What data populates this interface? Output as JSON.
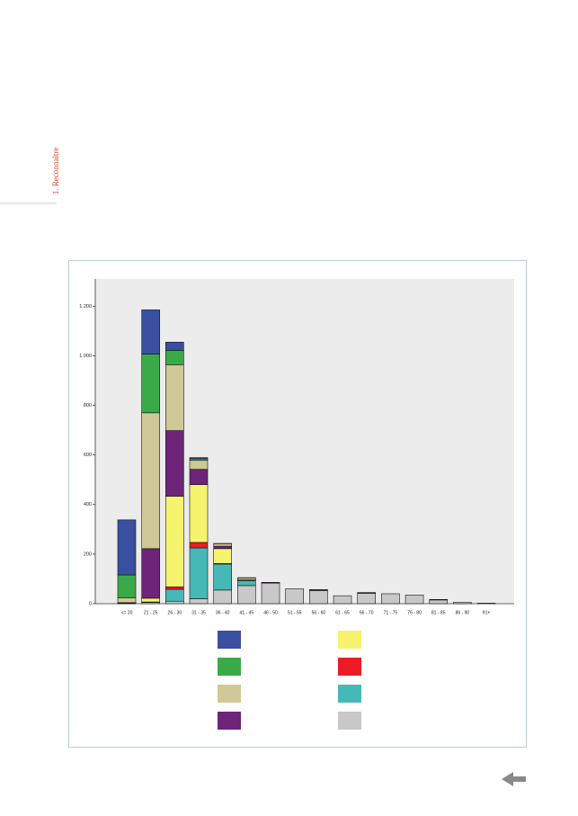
{
  "side_label": "1. Reconnaître",
  "chart_data": {
    "type": "stacked_bar",
    "categories": [
      "<= 20",
      "21 - 25",
      "26 - 30",
      "31 - 35",
      "36 - 40",
      "41 - 45",
      "46 - 50",
      "51 - 55",
      "56 - 60",
      "61 - 65",
      "66 - 70",
      "71 - 75",
      "76 - 80",
      "81 - 85",
      "86 - 90",
      "91+"
    ],
    "series": [
      {
        "color": "#c8c8c8",
        "values": [
          2,
          5,
          10,
          20,
          55,
          73,
          83,
          60,
          53,
          32,
          42,
          40,
          35,
          15,
          5,
          2
        ]
      },
      {
        "color": "#47b8b8",
        "values": [
          0,
          0,
          48,
          205,
          105,
          20,
          0,
          0,
          0,
          0,
          0,
          0,
          0,
          0,
          0,
          0
        ]
      },
      {
        "color": "#ed1c24",
        "values": [
          0,
          2,
          10,
          22,
          2,
          0,
          0,
          0,
          0,
          0,
          0,
          0,
          0,
          0,
          0,
          0
        ]
      },
      {
        "color": "#f6f36e",
        "values": [
          2,
          15,
          365,
          233,
          60,
          3,
          0,
          0,
          0,
          0,
          0,
          0,
          0,
          0,
          0,
          0
        ]
      },
      {
        "color": "#6e2479",
        "values": [
          0,
          200,
          265,
          62,
          10,
          0,
          3,
          0,
          4,
          0,
          3,
          0,
          0,
          2,
          0,
          0
        ]
      },
      {
        "color": "#cfc897",
        "values": [
          20,
          548,
          266,
          36,
          10,
          8,
          0,
          0,
          0,
          0,
          0,
          0,
          0,
          0,
          0,
          0
        ]
      },
      {
        "color": "#3aaa48",
        "values": [
          92,
          237,
          58,
          7,
          0,
          1,
          0,
          0,
          0,
          0,
          0,
          0,
          0,
          0,
          0,
          0
        ]
      },
      {
        "color": "#3a4fa0",
        "values": [
          222,
          178,
          33,
          4,
          1,
          0,
          0,
          0,
          0,
          0,
          0,
          0,
          0,
          0,
          0,
          0
        ]
      }
    ],
    "ylim": [
      0,
      1310
    ],
    "yticks": [
      0,
      200,
      400,
      600,
      800,
      {
        "value": 1000,
        "label": "1.000"
      },
      {
        "value": 1200,
        "label": "1.200"
      }
    ],
    "plot_background": "#ececec"
  }
}
